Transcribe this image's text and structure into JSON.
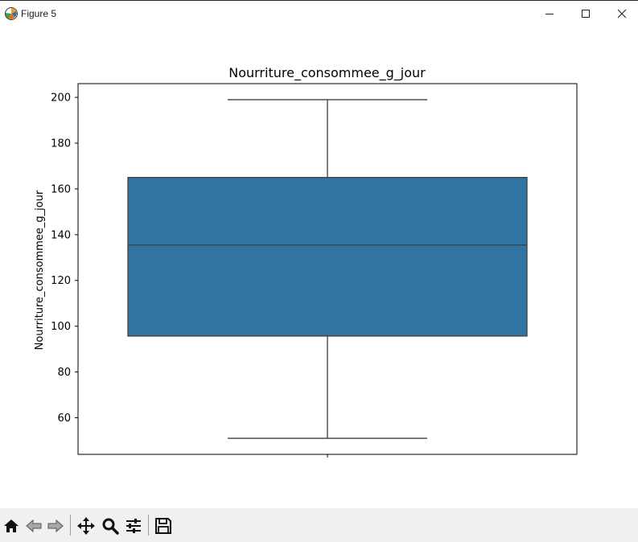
{
  "window": {
    "title": "Figure 5",
    "controls": {
      "minimize": "minimize-icon",
      "maximize": "maximize-icon",
      "close": "close-icon"
    }
  },
  "toolbar": {
    "buttons": [
      {
        "name": "home-button",
        "icon": "home-icon",
        "label": "Home"
      },
      {
        "name": "back-button",
        "icon": "back-arrow-icon",
        "label": "Back"
      },
      {
        "name": "forward-button",
        "icon": "forward-arrow-icon",
        "label": "Forward"
      },
      {
        "name": "pan-button",
        "icon": "move-icon",
        "label": "Pan"
      },
      {
        "name": "zoom-button",
        "icon": "search-icon",
        "label": "Zoom"
      },
      {
        "name": "configure-button",
        "icon": "sliders-icon",
        "label": "Configure subplots"
      },
      {
        "name": "save-button",
        "icon": "save-icon",
        "label": "Save"
      }
    ]
  },
  "chart_data": {
    "type": "box",
    "title": "Nourriture_consommee_g_jour",
    "xlabel": "",
    "ylabel": "Nourriture_consommee_g_jour",
    "ylim": [
      44,
      206
    ],
    "yticks": [
      60,
      80,
      100,
      120,
      140,
      160,
      180,
      200
    ],
    "grid": false,
    "box": {
      "whisker_low": 51,
      "q1": 95.7,
      "median": 135.5,
      "q3": 165,
      "whisker_high": 199
    },
    "colors": {
      "box_fill": "#3274a1",
      "edge": "#3f3f3f",
      "axis": "#000000"
    }
  }
}
